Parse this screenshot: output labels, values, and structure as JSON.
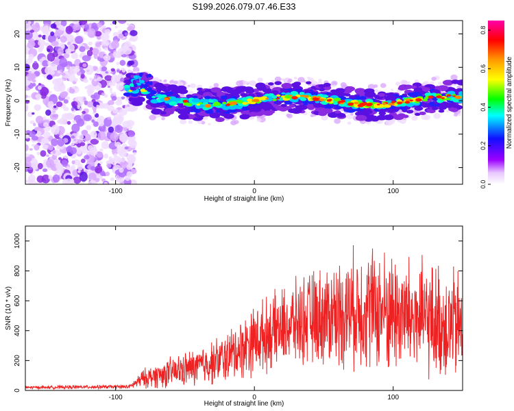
{
  "title": "S199.2026.079.07.46.E33",
  "chart_data": [
    {
      "type": "heatmap",
      "name": "spectrogram",
      "xlabel": "Height of straight line (km)",
      "ylabel": "Frequency (Hz)",
      "xlim": [
        -165,
        150
      ],
      "ylim": [
        -25,
        24
      ],
      "xticks": [
        -100,
        0,
        100
      ],
      "xtick_labels": [
        "-100",
        "0",
        "100"
      ],
      "yticks": [
        -20,
        -10,
        0,
        10,
        20
      ],
      "ytick_labels": [
        "-20",
        "-10",
        "0",
        "10",
        "20"
      ],
      "colorbar": {
        "label": "Normalized spectral amplitude",
        "range": [
          0.0,
          0.85
        ],
        "ticks": [
          0.0,
          0.2,
          0.4,
          0.6,
          0.8
        ],
        "tick_labels": [
          "0.0",
          "0.2",
          "0.4",
          "0.6",
          "0.8"
        ],
        "colors": [
          "#ffffff",
          "#9b00ff",
          "#0000ff",
          "#00ffff",
          "#00ff00",
          "#ffff00",
          "#ff8800",
          "#ff0000",
          "#ff00aa"
        ]
      },
      "features": {
        "noise_region_x": [
          -165,
          -90
        ],
        "signal_band_x": [
          -92,
          150
        ],
        "signal_center_freq": 0
      }
    },
    {
      "type": "line",
      "name": "snr",
      "xlabel": "Height of straight line (km)",
      "ylabel": "SNR (10 * v/v)",
      "xlim": [
        -165,
        150
      ],
      "ylim": [
        0,
        1100
      ],
      "xticks": [
        -100,
        0,
        100
      ],
      "xtick_labels": [
        "-100",
        "0",
        "100"
      ],
      "yticks": [
        0,
        200,
        400,
        600,
        800,
        1000
      ],
      "ytick_labels": [
        "0",
        "200",
        "400",
        "600",
        "800",
        "1000"
      ],
      "color": "#ee2222",
      "envelope": {
        "x": [
          -165,
          -90,
          -80,
          -60,
          -40,
          -20,
          -10,
          0,
          20,
          40,
          60,
          80,
          100,
          120,
          150
        ],
        "mean": [
          20,
          25,
          80,
          120,
          160,
          220,
          280,
          340,
          420,
          480,
          520,
          560,
          520,
          480,
          420
        ],
        "spread": [
          8,
          10,
          50,
          80,
          100,
          130,
          160,
          180,
          200,
          240,
          280,
          320,
          320,
          300,
          300
        ]
      }
    }
  ]
}
